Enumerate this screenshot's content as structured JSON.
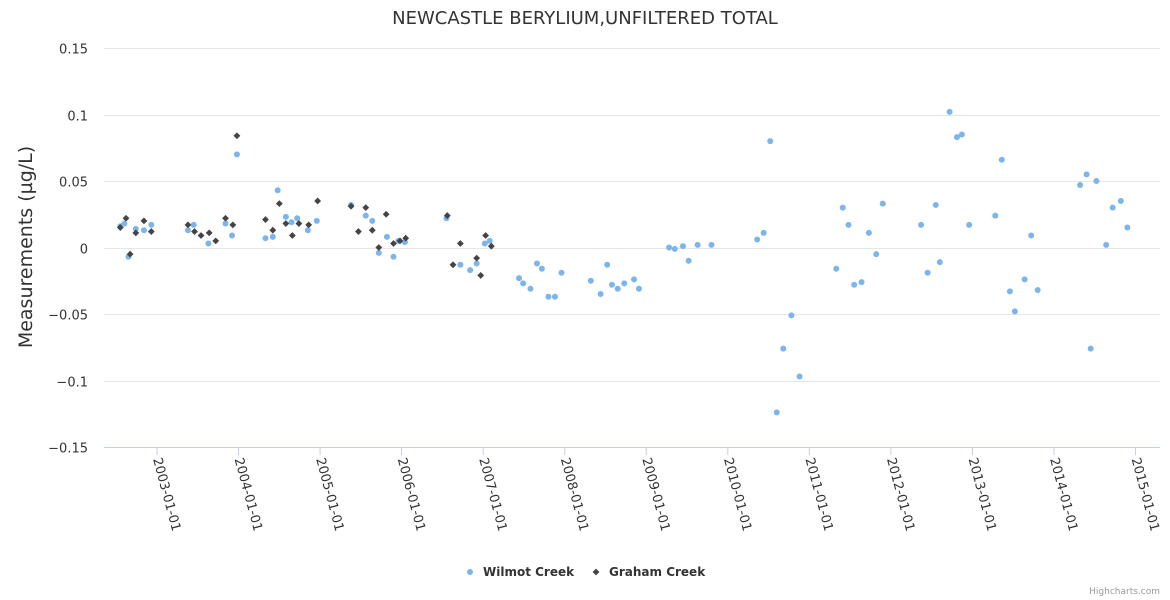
{
  "chart_data": {
    "type": "scatter",
    "title": "NEWCASTLE BERYLIUM,UNFILTERED TOTAL",
    "ylabel": "Measurements (µg/L)",
    "xlabel": "",
    "ylim": [
      -0.15,
      0.15
    ],
    "y_ticks": [
      0.15,
      0.1,
      0.05,
      0,
      -0.05,
      -0.1,
      -0.15
    ],
    "y_tick_labels": [
      "0.15",
      "0.1",
      "0.05",
      "0",
      "−0.05",
      "−0.1",
      "−0.15"
    ],
    "xlim": [
      2002.35,
      2015.3
    ],
    "x_ticks": [
      2003,
      2004,
      2005,
      2006,
      2007,
      2008,
      2009,
      2010,
      2011,
      2012,
      2013,
      2014,
      2015
    ],
    "x_tick_labels": [
      "2003-01-01",
      "2004-01-01",
      "2005-01-01",
      "2006-01-01",
      "2007-01-01",
      "2008-01-01",
      "2009-01-01",
      "2010-01-01",
      "2011-01-01",
      "2012-01-01",
      "2013-01-01",
      "2014-01-01",
      "2015-01-01"
    ],
    "legend_position": "bottom-center",
    "grid": true,
    "series": [
      {
        "name": "Wilmot Creek",
        "marker": "circle",
        "color": "#7cb5ec",
        "points": [
          [
            2002.55,
            0.016
          ],
          [
            2002.6,
            0.018
          ],
          [
            2002.65,
            -0.007
          ],
          [
            2002.74,
            0.014
          ],
          [
            2002.84,
            0.013
          ],
          [
            2002.93,
            0.017
          ],
          [
            2003.38,
            0.013
          ],
          [
            2003.45,
            0.017
          ],
          [
            2003.63,
            0.003
          ],
          [
            2003.84,
            0.018
          ],
          [
            2003.92,
            0.009
          ],
          [
            2003.98,
            0.07
          ],
          [
            2004.33,
            0.007
          ],
          [
            2004.42,
            0.008
          ],
          [
            2004.48,
            0.043
          ],
          [
            2004.58,
            0.023
          ],
          [
            2004.65,
            0.019
          ],
          [
            2004.72,
            0.022
          ],
          [
            2004.85,
            0.013
          ],
          [
            2004.96,
            0.02
          ],
          [
            2005.38,
            0.032
          ],
          [
            2005.56,
            0.024
          ],
          [
            2005.64,
            0.02
          ],
          [
            2005.72,
            -0.004
          ],
          [
            2005.82,
            0.008
          ],
          [
            2005.9,
            -0.007
          ],
          [
            2005.96,
            0.005
          ],
          [
            2006.04,
            0.004
          ],
          [
            2006.55,
            0.022
          ],
          [
            2006.72,
            -0.013
          ],
          [
            2006.84,
            -0.017
          ],
          [
            2006.92,
            -0.012
          ],
          [
            2007.02,
            0.003
          ],
          [
            2007.08,
            0.005
          ],
          [
            2007.44,
            -0.023
          ],
          [
            2007.49,
            -0.027
          ],
          [
            2007.58,
            -0.031
          ],
          [
            2007.66,
            -0.012
          ],
          [
            2007.72,
            -0.016
          ],
          [
            2007.8,
            -0.037
          ],
          [
            2007.88,
            -0.037
          ],
          [
            2007.96,
            -0.019
          ],
          [
            2008.32,
            -0.025
          ],
          [
            2008.44,
            -0.035
          ],
          [
            2008.52,
            -0.013
          ],
          [
            2008.58,
            -0.028
          ],
          [
            2008.65,
            -0.031
          ],
          [
            2008.73,
            -0.027
          ],
          [
            2008.85,
            -0.024
          ],
          [
            2008.91,
            -0.031
          ],
          [
            2009.28,
            0.0
          ],
          [
            2009.35,
            -0.001
          ],
          [
            2009.45,
            0.001
          ],
          [
            2009.52,
            -0.01
          ],
          [
            2009.63,
            0.002
          ],
          [
            2009.8,
            0.002
          ],
          [
            2010.36,
            0.006
          ],
          [
            2010.44,
            0.011
          ],
          [
            2010.52,
            0.08
          ],
          [
            2010.6,
            -0.124
          ],
          [
            2010.68,
            -0.076
          ],
          [
            2010.78,
            -0.051
          ],
          [
            2010.88,
            -0.097
          ],
          [
            2011.33,
            -0.016
          ],
          [
            2011.41,
            0.03
          ],
          [
            2011.48,
            0.017
          ],
          [
            2011.55,
            -0.028
          ],
          [
            2011.64,
            -0.026
          ],
          [
            2011.73,
            0.011
          ],
          [
            2011.82,
            -0.005
          ],
          [
            2011.9,
            0.033
          ],
          [
            2012.37,
            0.017
          ],
          [
            2012.45,
            -0.019
          ],
          [
            2012.55,
            0.032
          ],
          [
            2012.6,
            -0.011
          ],
          [
            2012.72,
            0.102
          ],
          [
            2012.81,
            0.083
          ],
          [
            2012.87,
            0.085
          ],
          [
            2012.96,
            0.017
          ],
          [
            2013.28,
            0.024
          ],
          [
            2013.36,
            0.066
          ],
          [
            2013.46,
            -0.033
          ],
          [
            2013.52,
            -0.048
          ],
          [
            2013.64,
            -0.024
          ],
          [
            2013.72,
            0.009
          ],
          [
            2013.8,
            -0.032
          ],
          [
            2014.32,
            0.047
          ],
          [
            2014.4,
            0.055
          ],
          [
            2014.45,
            -0.076
          ],
          [
            2014.52,
            0.05
          ],
          [
            2014.64,
            0.002
          ],
          [
            2014.72,
            0.03
          ],
          [
            2014.82,
            0.035
          ],
          [
            2014.9,
            0.015
          ]
        ]
      },
      {
        "name": "Graham Creek",
        "marker": "diamond",
        "color": "#434348",
        "points": [
          [
            2002.55,
            0.015
          ],
          [
            2002.62,
            0.022
          ],
          [
            2002.67,
            -0.005
          ],
          [
            2002.74,
            0.011
          ],
          [
            2002.84,
            0.02
          ],
          [
            2002.93,
            0.012
          ],
          [
            2003.38,
            0.017
          ],
          [
            2003.46,
            0.012
          ],
          [
            2003.54,
            0.009
          ],
          [
            2003.64,
            0.011
          ],
          [
            2003.72,
            0.005
          ],
          [
            2003.84,
            0.022
          ],
          [
            2003.93,
            0.017
          ],
          [
            2003.98,
            0.084
          ],
          [
            2004.33,
            0.021
          ],
          [
            2004.42,
            0.013
          ],
          [
            2004.5,
            0.033
          ],
          [
            2004.58,
            0.018
          ],
          [
            2004.66,
            0.009
          ],
          [
            2004.74,
            0.018
          ],
          [
            2004.86,
            0.017
          ],
          [
            2004.97,
            0.035
          ],
          [
            2005.38,
            0.031
          ],
          [
            2005.47,
            0.012
          ],
          [
            2005.56,
            0.03
          ],
          [
            2005.64,
            0.013
          ],
          [
            2005.72,
            0.0
          ],
          [
            2005.81,
            0.025
          ],
          [
            2005.9,
            0.003
          ],
          [
            2005.98,
            0.005
          ],
          [
            2006.05,
            0.007
          ],
          [
            2006.56,
            0.024
          ],
          [
            2006.63,
            -0.013
          ],
          [
            2006.72,
            0.003
          ],
          [
            2006.92,
            -0.008
          ],
          [
            2006.97,
            -0.021
          ],
          [
            2007.03,
            0.009
          ],
          [
            2007.1,
            0.001
          ]
        ]
      }
    ]
  },
  "credits": "Highcharts.com"
}
